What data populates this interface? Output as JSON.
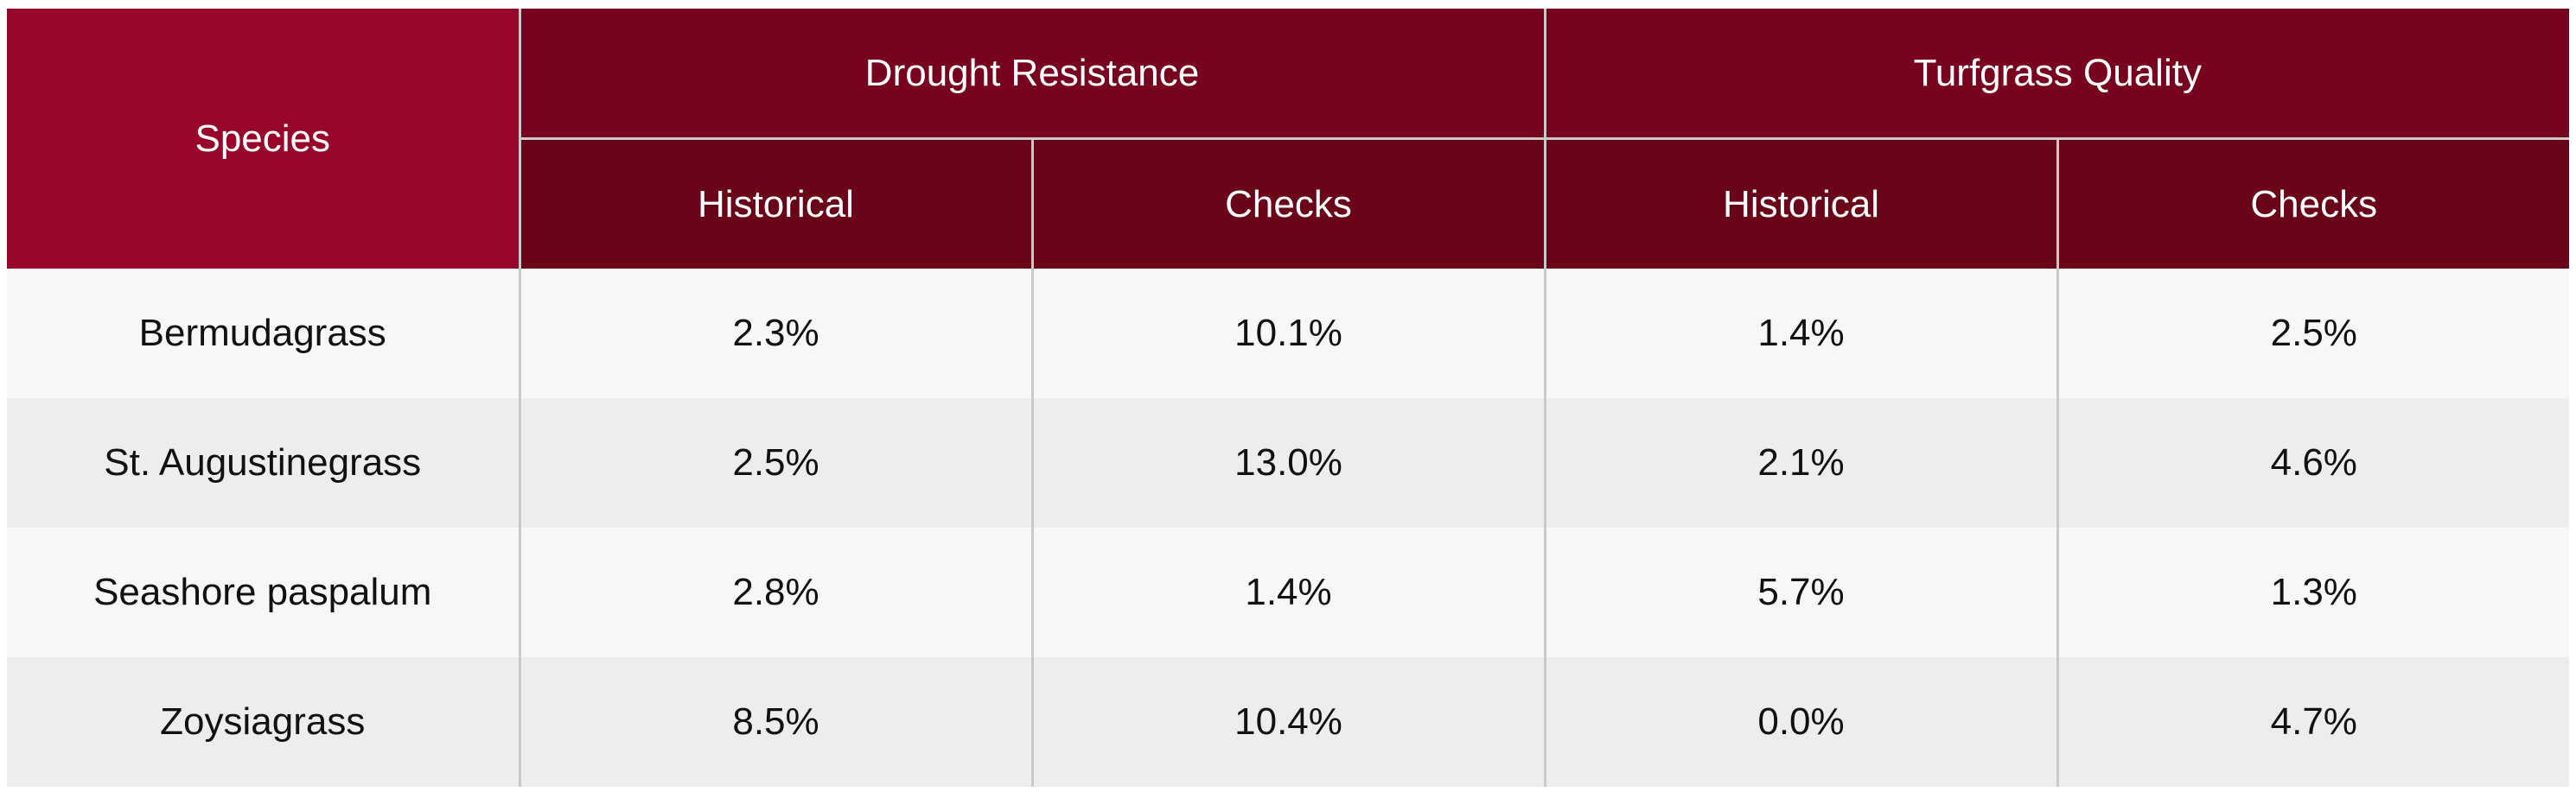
{
  "table": {
    "header": {
      "species": "Species",
      "groups": [
        {
          "label": "Drought Resistance"
        },
        {
          "label": "Turfgrass Quality"
        }
      ],
      "subheaders": [
        "Historical",
        "Checks",
        "Historical",
        "Checks"
      ]
    },
    "rows": [
      {
        "species": "Bermudagrass",
        "values": [
          "2.3%",
          "10.1%",
          "1.4%",
          "2.5%"
        ]
      },
      {
        "species": "St. Augustinegrass",
        "values": [
          "2.5%",
          "13.0%",
          "2.1%",
          "4.6%"
        ]
      },
      {
        "species": "Seashore paspalum",
        "values": [
          "2.8%",
          "1.4%",
          "5.7%",
          "1.3%"
        ]
      },
      {
        "species": "Zoysiagrass",
        "values": [
          "8.5%",
          "10.4%",
          "0.0%",
          "4.7%"
        ]
      }
    ]
  },
  "colors": {
    "species_header": "#98062a",
    "group_header": "#78031f",
    "sub_header": "#6a0419",
    "row_light": "#f7f7f7",
    "row_dark": "#ededeb",
    "divider": "#c9c9c9"
  }
}
